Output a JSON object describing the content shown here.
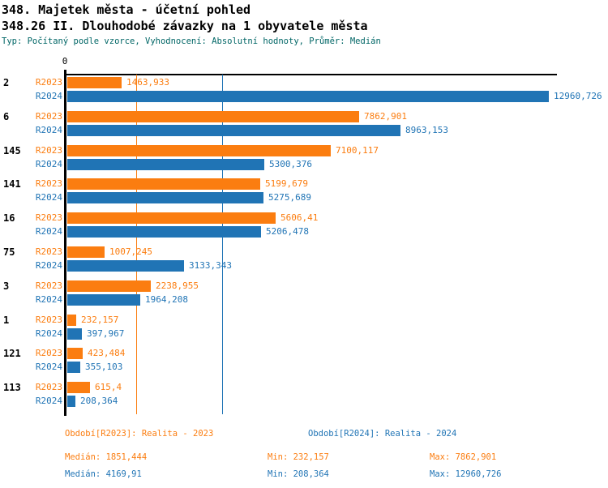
{
  "page": {
    "title_line1": "348. Majetek města - účetní pohled",
    "title_line2": "348.26 II. Dlouhodobé závazky na 1 obyvatele města",
    "meta": "Typ: Počítaný podle vzorce, Vyhodnocení: Absolutní hodnoty, Průměr: Medián"
  },
  "colors": {
    "r2023": "#FB7D10",
    "r2024": "#2074B5",
    "meta_text": "#006666",
    "axis": "#000000"
  },
  "chart_data": {
    "type": "bar",
    "orientation": "horizontal",
    "title": "348.26 II. Dlouhodobé závazky na 1 obyvatele města",
    "x_axis": {
      "zero_label": "0",
      "xlim": [
        0,
        13100
      ],
      "grid": "median-lines-only"
    },
    "categories": [
      "2",
      "6",
      "145",
      "141",
      "16",
      "75",
      "3",
      "1",
      "121",
      "113"
    ],
    "series": [
      {
        "name": "R2023",
        "color": "#FB7D10",
        "values": [
          1463.933,
          7862.901,
          7100.117,
          5199.679,
          5606.41,
          1007.245,
          2238.955,
          232.157,
          423.484,
          615.4
        ],
        "value_labels": [
          "1463,933",
          "7862,901",
          "7100,117",
          "5199,679",
          "5606,41",
          "1007,245",
          "2238,955",
          "232,157",
          "423,484",
          "615,4"
        ],
        "median": 1851.444
      },
      {
        "name": "R2024",
        "color": "#2074B5",
        "values": [
          12960.726,
          8963.153,
          5300.376,
          5275.689,
          5206.478,
          3133.343,
          1964.208,
          397.967,
          355.103,
          208.364
        ],
        "value_labels": [
          "12960,726",
          "8963,153",
          "5300,376",
          "5275,689",
          "5206,478",
          "3133,343",
          "1964,208",
          "397,967",
          "355,103",
          "208,364"
        ],
        "median": 4169.91
      }
    ]
  },
  "legend": {
    "r2023": "Období[R2023]: Realita - 2023",
    "r2024": "Období[R2024]: Realita - 2024"
  },
  "stats": {
    "r2023": {
      "median": "Medián: 1851,444",
      "min": "Min: 232,157",
      "max": "Max: 7862,901"
    },
    "r2024": {
      "median": "Medián: 4169,91",
      "min": "Min: 208,364",
      "max": "Max: 12960,726"
    }
  }
}
